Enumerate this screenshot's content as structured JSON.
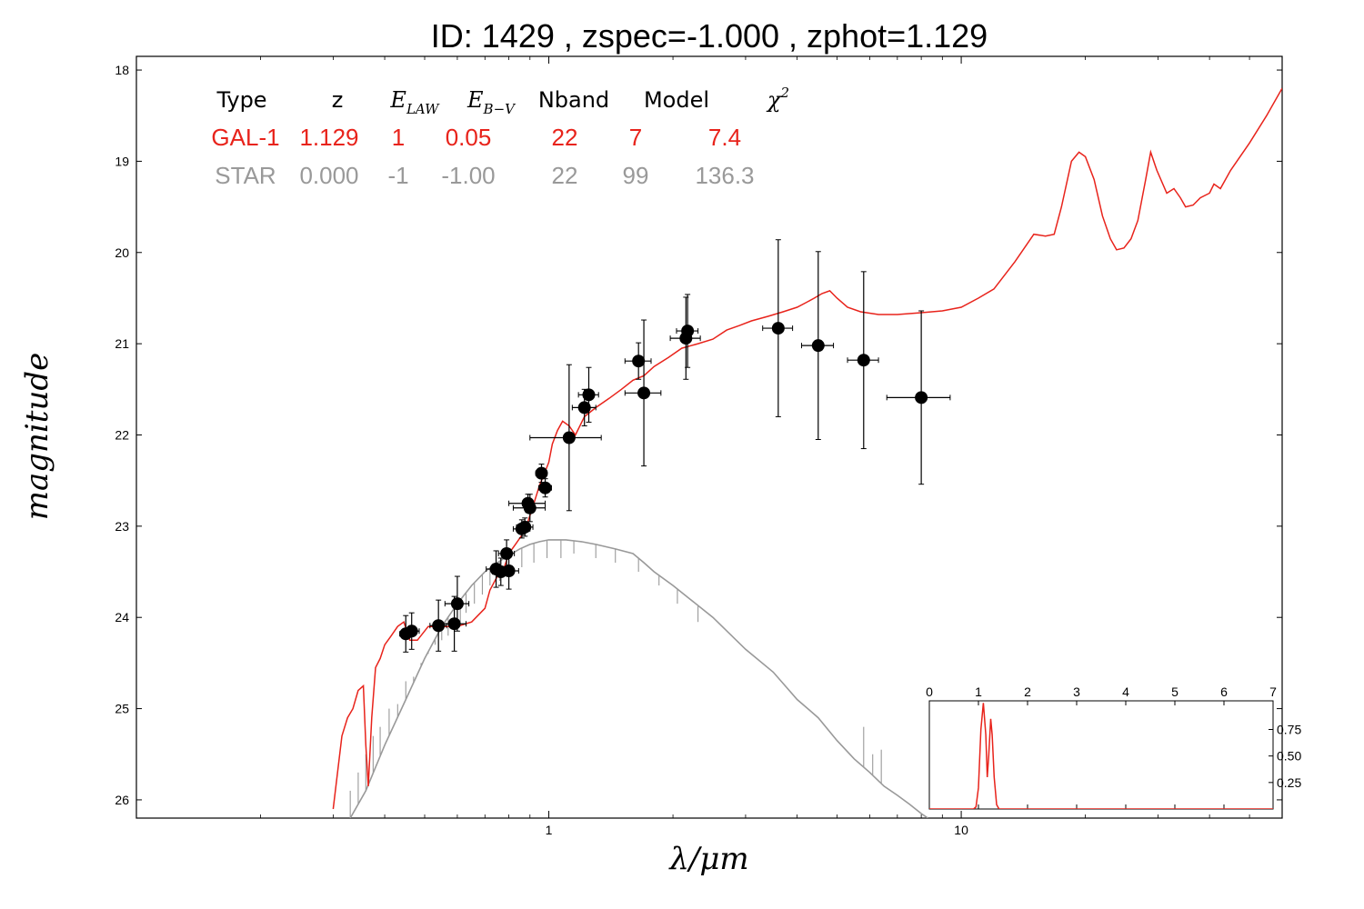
{
  "chart_data": [
    {
      "type": "line",
      "title": "ID:  1429  , zspec=-1.000 , zphot=1.129",
      "xlabel": "λ/μm",
      "ylabel": "magnitude",
      "xscale": "log",
      "xlim": [
        0.1,
        60
      ],
      "ylim": [
        26.2,
        17.85
      ],
      "x_ticks": [
        {
          "v": 1,
          "label": "1"
        },
        {
          "v": 10,
          "label": "10"
        }
      ],
      "y_ticks": [
        {
          "v": 18,
          "label": "18"
        },
        {
          "v": 19,
          "label": "19"
        },
        {
          "v": 20,
          "label": "20"
        },
        {
          "v": 21,
          "label": "21"
        },
        {
          "v": 22,
          "label": "22"
        },
        {
          "v": 23,
          "label": "23"
        },
        {
          "v": 24,
          "label": "24"
        },
        {
          "v": 25,
          "label": "25"
        },
        {
          "v": 26,
          "label": "26"
        }
      ],
      "colors": {
        "galaxy": "#e8231b",
        "star": "#999999",
        "points": "#000000"
      },
      "table": {
        "headers": [
          "Type",
          "z",
          "E",
          "E",
          "Nband",
          "Model",
          "χ"
        ],
        "header_subscripts": [
          "",
          "",
          "LAW",
          "B−V",
          "",
          "",
          ""
        ],
        "header_superscripts": [
          "",
          "",
          "",
          "",
          "",
          "",
          "2"
        ],
        "rows": [
          {
            "color": "#e8231b",
            "cells": [
              "GAL-1",
              "1.129",
              "1",
              "0.05",
              "22",
              "7",
              "7.4"
            ]
          },
          {
            "color": "#999999",
            "cells": [
              "STAR",
              "0.000",
              "-1",
              "-1.00",
              "22",
              "99",
              "136.3"
            ]
          }
        ]
      },
      "series": [
        {
          "name": "GAL-1",
          "color": "#e8231b",
          "points": [
            [
              0.3,
              26.1
            ],
            [
              0.315,
              25.3
            ],
            [
              0.325,
              25.1
            ],
            [
              0.335,
              25.0
            ],
            [
              0.345,
              24.8
            ],
            [
              0.355,
              24.75
            ],
            [
              0.36,
              25.4
            ],
            [
              0.365,
              25.85
            ],
            [
              0.372,
              25.1
            ],
            [
              0.38,
              24.55
            ],
            [
              0.39,
              24.45
            ],
            [
              0.4,
              24.3
            ],
            [
              0.415,
              24.2
            ],
            [
              0.43,
              24.1
            ],
            [
              0.445,
              24.05
            ],
            [
              0.46,
              24.25
            ],
            [
              0.48,
              24.25
            ],
            [
              0.51,
              24.1
            ],
            [
              0.55,
              24.1
            ],
            [
              0.6,
              24.1
            ],
            [
              0.65,
              24.05
            ],
            [
              0.7,
              23.9
            ],
            [
              0.72,
              23.7
            ],
            [
              0.75,
              23.55
            ],
            [
              0.78,
              23.45
            ],
            [
              0.8,
              23.3
            ],
            [
              0.83,
              23.2
            ],
            [
              0.86,
              23.1
            ],
            [
              0.89,
              22.95
            ],
            [
              0.92,
              22.75
            ],
            [
              0.95,
              22.55
            ],
            [
              0.98,
              22.4
            ],
            [
              1.0,
              22.3
            ],
            [
              1.02,
              22.1
            ],
            [
              1.05,
              21.95
            ],
            [
              1.08,
              21.85
            ],
            [
              1.12,
              21.9
            ],
            [
              1.16,
              22.0
            ],
            [
              1.22,
              21.8
            ],
            [
              1.3,
              21.7
            ],
            [
              1.4,
              21.6
            ],
            [
              1.5,
              21.5
            ],
            [
              1.6,
              21.4
            ],
            [
              1.7,
              21.35
            ],
            [
              1.8,
              21.25
            ],
            [
              1.95,
              21.15
            ],
            [
              2.1,
              21.05
            ],
            [
              2.3,
              21.0
            ],
            [
              2.5,
              20.95
            ],
            [
              2.7,
              20.85
            ],
            [
              2.9,
              20.8
            ],
            [
              3.1,
              20.75
            ],
            [
              3.4,
              20.7
            ],
            [
              3.7,
              20.65
            ],
            [
              4.0,
              20.6
            ],
            [
              4.2,
              20.55
            ],
            [
              4.4,
              20.5
            ],
            [
              4.6,
              20.45
            ],
            [
              4.8,
              20.42
            ],
            [
              5.0,
              20.5
            ],
            [
              5.3,
              20.6
            ],
            [
              5.7,
              20.65
            ],
            [
              6.3,
              20.68
            ],
            [
              7.0,
              20.68
            ],
            [
              8.0,
              20.66
            ],
            [
              9.0,
              20.64
            ],
            [
              10.0,
              20.6
            ],
            [
              11.0,
              20.5
            ],
            [
              12.0,
              20.4
            ],
            [
              13.5,
              20.1
            ],
            [
              15.0,
              19.8
            ],
            [
              16.0,
              19.82
            ],
            [
              16.8,
              19.8
            ],
            [
              17.5,
              19.5
            ],
            [
              18.5,
              19.0
            ],
            [
              19.3,
              18.9
            ],
            [
              20.0,
              18.95
            ],
            [
              21.0,
              19.2
            ],
            [
              22.0,
              19.6
            ],
            [
              23.0,
              19.85
            ],
            [
              23.8,
              19.97
            ],
            [
              24.8,
              19.95
            ],
            [
              25.8,
              19.85
            ],
            [
              26.8,
              19.65
            ],
            [
              28.0,
              19.2
            ],
            [
              28.8,
              18.9
            ],
            [
              29.8,
              19.1
            ],
            [
              31.5,
              19.35
            ],
            [
              32.8,
              19.3
            ],
            [
              34.0,
              19.4
            ],
            [
              35.0,
              19.5
            ],
            [
              36.5,
              19.48
            ],
            [
              38.0,
              19.4
            ],
            [
              40.0,
              19.35
            ],
            [
              41.0,
              19.25
            ],
            [
              42.5,
              19.3
            ],
            [
              45.0,
              19.1
            ],
            [
              50.0,
              18.8
            ],
            [
              55.0,
              18.5
            ],
            [
              60.0,
              18.2
            ]
          ]
        },
        {
          "name": "STAR",
          "color": "#999999",
          "points": [
            [
              0.33,
              26.2
            ],
            [
              0.36,
              25.9
            ],
            [
              0.4,
              25.4
            ],
            [
              0.45,
              24.9
            ],
            [
              0.5,
              24.45
            ],
            [
              0.55,
              24.1
            ],
            [
              0.6,
              23.85
            ],
            [
              0.65,
              23.65
            ],
            [
              0.7,
              23.5
            ],
            [
              0.75,
              23.4
            ],
            [
              0.8,
              23.32
            ],
            [
              0.85,
              23.25
            ],
            [
              0.9,
              23.2
            ],
            [
              0.95,
              23.17
            ],
            [
              1.0,
              23.15
            ],
            [
              1.1,
              23.15
            ],
            [
              1.2,
              23.17
            ],
            [
              1.3,
              23.2
            ],
            [
              1.45,
              23.25
            ],
            [
              1.6,
              23.3
            ],
            [
              1.7,
              23.4
            ],
            [
              1.8,
              23.5
            ],
            [
              2.0,
              23.65
            ],
            [
              2.2,
              23.8
            ],
            [
              2.5,
              24.0
            ],
            [
              3.0,
              24.35
            ],
            [
              3.5,
              24.6
            ],
            [
              4.0,
              24.9
            ],
            [
              4.5,
              25.1
            ],
            [
              5.0,
              25.35
            ],
            [
              5.5,
              25.55
            ],
            [
              6.0,
              25.7
            ],
            [
              6.5,
              25.85
            ],
            [
              7.0,
              25.95
            ],
            [
              7.5,
              26.05
            ],
            [
              8.0,
              26.15
            ],
            [
              8.3,
              26.2
            ]
          ],
          "absorption_lines": [
            [
              0.33,
              25.9
            ],
            [
              0.345,
              25.7
            ],
            [
              0.36,
              25.5
            ],
            [
              0.375,
              25.3
            ],
            [
              0.39,
              25.2
            ],
            [
              0.41,
              25.0
            ],
            [
              0.43,
              24.95
            ],
            [
              0.45,
              24.7
            ],
            [
              0.47,
              24.65
            ],
            [
              0.49,
              24.5
            ],
            [
              0.51,
              24.4
            ],
            [
              0.53,
              24.3
            ],
            [
              0.55,
              24.25
            ],
            [
              0.57,
              24.2
            ],
            [
              0.59,
              24.15
            ],
            [
              0.61,
              24.05
            ],
            [
              0.63,
              23.95
            ],
            [
              0.66,
              23.85
            ],
            [
              0.69,
              23.75
            ],
            [
              0.72,
              23.65
            ],
            [
              0.76,
              23.6
            ],
            [
              0.8,
              23.5
            ],
            [
              0.86,
              23.45
            ],
            [
              0.92,
              23.4
            ],
            [
              0.99,
              23.35
            ],
            [
              1.07,
              23.35
            ],
            [
              1.15,
              23.3
            ],
            [
              1.3,
              23.35
            ],
            [
              1.45,
              23.4
            ],
            [
              1.65,
              23.5
            ],
            [
              1.85,
              23.65
            ],
            [
              2.05,
              23.85
            ],
            [
              2.3,
              24.05
            ],
            [
              5.8,
              25.2
            ],
            [
              6.1,
              25.5
            ],
            [
              6.4,
              25.45
            ]
          ]
        }
      ],
      "points": [
        {
          "x": 0.45,
          "y": 24.18,
          "xerr": 0.015,
          "yerr": 0.2
        },
        {
          "x": 0.465,
          "y": 24.15,
          "xerr": 0.02,
          "yerr": 0.2
        },
        {
          "x": 0.54,
          "y": 24.09,
          "xerr": 0.025,
          "yerr": 0.28
        },
        {
          "x": 0.59,
          "y": 24.07,
          "xerr": 0.04,
          "yerr": 0.3
        },
        {
          "x": 0.6,
          "y": 23.85,
          "xerr": 0.04,
          "yerr": 0.3
        },
        {
          "x": 0.745,
          "y": 23.47,
          "xerr": 0.04,
          "yerr": 0.2
        },
        {
          "x": 0.765,
          "y": 23.5,
          "xerr": 0.035,
          "yerr": 0.15
        },
        {
          "x": 0.79,
          "y": 23.3,
          "xerr": 0.035,
          "yerr": 0.15
        },
        {
          "x": 0.8,
          "y": 23.49,
          "xerr": 0.045,
          "yerr": 0.2
        },
        {
          "x": 0.86,
          "y": 23.03,
          "xerr": 0.04,
          "yerr": 0.1
        },
        {
          "x": 0.875,
          "y": 23.01,
          "xerr": 0.04,
          "yerr": 0.1
        },
        {
          "x": 0.89,
          "y": 22.75,
          "xerr": 0.09,
          "yerr": 0.1
        },
        {
          "x": 0.9,
          "y": 22.8,
          "xerr": 0.08,
          "yerr": 0.15
        },
        {
          "x": 0.96,
          "y": 22.42,
          "xerr": 0.03,
          "yerr": 0.1
        },
        {
          "x": 0.98,
          "y": 22.58,
          "xerr": 0.035,
          "yerr": 0.1
        },
        {
          "x": 1.12,
          "y": 22.03,
          "xerr": 0.22,
          "yerr": 0.8
        },
        {
          "x": 1.22,
          "y": 21.7,
          "xerr": 0.08,
          "yerr": 0.2
        },
        {
          "x": 1.25,
          "y": 21.56,
          "xerr": 0.07,
          "yerr": 0.3
        },
        {
          "x": 1.65,
          "y": 21.19,
          "xerr": 0.12,
          "yerr": 0.2
        },
        {
          "x": 1.7,
          "y": 21.54,
          "xerr": 0.17,
          "yerr": 0.8
        },
        {
          "x": 2.15,
          "y": 20.94,
          "xerr": 0.18,
          "yerr": 0.45
        },
        {
          "x": 2.17,
          "y": 20.86,
          "xerr": 0.13,
          "yerr": 0.4
        },
        {
          "x": 3.6,
          "y": 20.83,
          "xerr": 0.3,
          "yerr": 0.97
        },
        {
          "x": 4.5,
          "y": 21.02,
          "xerr": 0.4,
          "yerr": 1.03
        },
        {
          "x": 5.8,
          "y": 21.18,
          "xerr": 0.5,
          "yerr": 0.97
        },
        {
          "x": 8.0,
          "y": 21.59,
          "xerr": 1.4,
          "yerr": 0.95
        }
      ]
    },
    {
      "type": "line",
      "title": "",
      "xlabel": "",
      "ylabel": "",
      "xlim": [
        0,
        7
      ],
      "ylim": [
        0,
        1.02
      ],
      "x_ticks": [
        {
          "v": 0,
          "label": "0"
        },
        {
          "v": 1,
          "label": "1"
        },
        {
          "v": 2,
          "label": "2"
        },
        {
          "v": 3,
          "label": "3"
        },
        {
          "v": 4,
          "label": "4"
        },
        {
          "v": 5,
          "label": "5"
        },
        {
          "v": 6,
          "label": "6"
        },
        {
          "v": 7,
          "label": "7"
        }
      ],
      "y_ticks": [
        {
          "v": 0.25,
          "label": "0.25"
        },
        {
          "v": 0.5,
          "label": "0.50"
        },
        {
          "v": 0.75,
          "label": "0.75"
        }
      ],
      "color": "#e8231b",
      "points": [
        [
          0,
          0.0
        ],
        [
          0.9,
          0.0
        ],
        [
          0.95,
          0.02
        ],
        [
          1.0,
          0.2
        ],
        [
          1.05,
          0.75
        ],
        [
          1.1,
          1.0
        ],
        [
          1.15,
          0.7
        ],
        [
          1.18,
          0.3
        ],
        [
          1.21,
          0.5
        ],
        [
          1.25,
          0.85
        ],
        [
          1.28,
          0.7
        ],
        [
          1.32,
          0.3
        ],
        [
          1.37,
          0.04
        ],
        [
          1.42,
          0.0
        ],
        [
          7,
          0.0
        ]
      ]
    }
  ]
}
